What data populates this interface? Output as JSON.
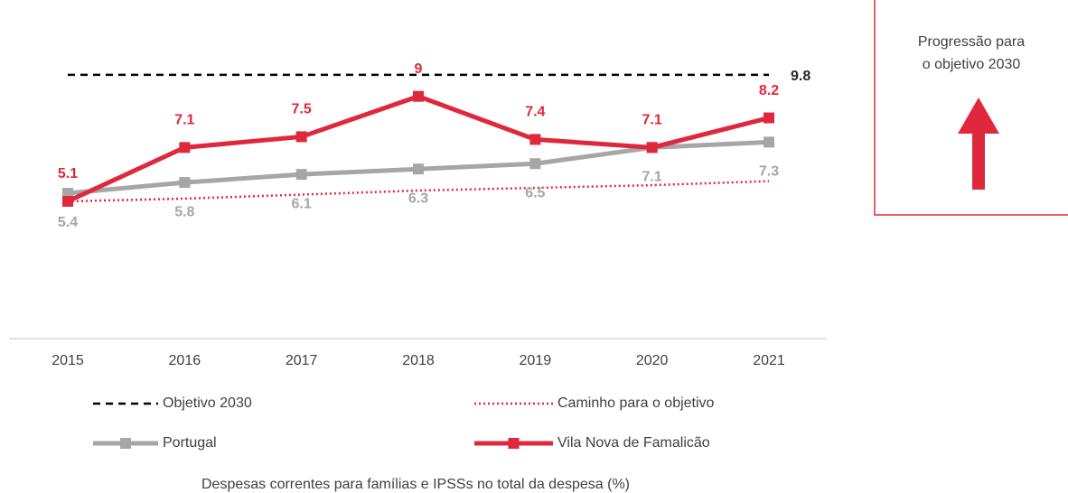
{
  "chart_data": {
    "type": "line",
    "categories": [
      "2015",
      "2016",
      "2017",
      "2018",
      "2019",
      "2020",
      "2021"
    ],
    "ylim": [
      0,
      10.5
    ],
    "series": [
      {
        "name": "Objetivo 2030",
        "color": "#000000",
        "style": "dashed",
        "marker": false,
        "labels": "last-right",
        "values": [
          9.8,
          9.8,
          9.8,
          9.8,
          9.8,
          9.8,
          9.8
        ]
      },
      {
        "name": "Caminho para o objetivo",
        "color": "#e0283c",
        "style": "dotted",
        "marker": false,
        "labels": "none",
        "values": [
          5.1,
          5.2,
          5.35,
          5.5,
          5.6,
          5.7,
          5.85
        ]
      },
      {
        "name": "Portugal",
        "color": "#a6a6a6",
        "style": "solid",
        "marker": true,
        "labels": "below",
        "values": [
          5.4,
          5.8,
          6.1,
          6.3,
          6.5,
          7.1,
          7.3
        ]
      },
      {
        "name": "Vila Nova de Famalicão",
        "color": "#e0283c",
        "style": "solid",
        "marker": true,
        "labels": "above",
        "values": [
          5.1,
          7.1,
          7.5,
          9.0,
          7.4,
          7.1,
          8.2
        ]
      }
    ],
    "caption": "Despesas correntes para famílias e IPSSs no total da despesa (%)",
    "annotation": [
      "Progressão para",
      "o objetivo 2030"
    ],
    "annotation_color": "#e0283c"
  }
}
